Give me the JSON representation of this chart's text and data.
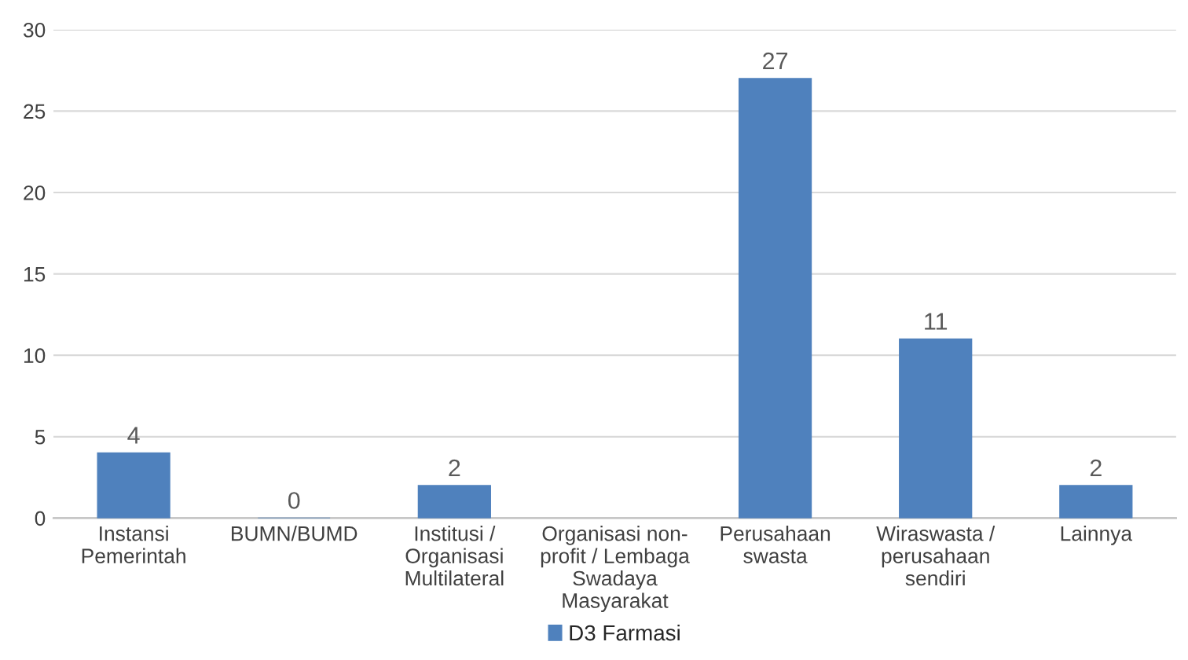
{
  "chart_data": {
    "type": "bar",
    "categories": [
      "Instansi\nPemerintah",
      "BUMN/BUMD",
      "Institusi /\nOrganisasi\nMultilateral",
      "Organisasi non-\nprofit / Lembaga\nSwadaya\nMasyarakat",
      "Perusahaan\nswasta",
      "Wiraswasta /\nperusahaan\nsendiri",
      "Lainnya"
    ],
    "series": [
      {
        "name": "D3 Farmasi",
        "color": "#4f81bd",
        "values": [
          4,
          0,
          2,
          null,
          27,
          11,
          2
        ],
        "value_labels": [
          "4",
          "0",
          "2",
          null,
          "27",
          "11",
          "2"
        ]
      }
    ],
    "ylim": [
      0,
      30
    ],
    "yticks": [
      0,
      5,
      10,
      15,
      20,
      25,
      30
    ],
    "grid": "y",
    "legend": "bottom"
  }
}
